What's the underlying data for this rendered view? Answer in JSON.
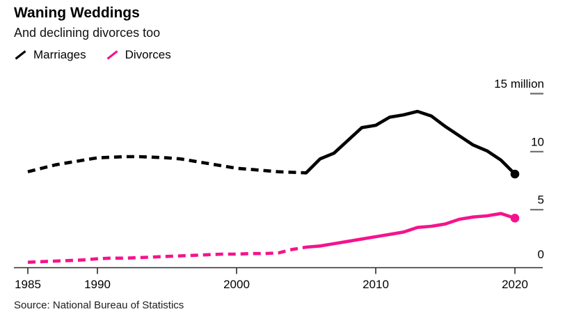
{
  "chart_data": {
    "type": "line",
    "title": "Waning Weddings",
    "subtitle": "And declining divorces too",
    "source": "Source: National Bureau of Statistics",
    "unit": "million",
    "x": [
      1985,
      1986,
      1987,
      1988,
      1989,
      1990,
      1991,
      1992,
      1993,
      1994,
      1995,
      1996,
      1997,
      1998,
      1999,
      2000,
      2001,
      2002,
      2003,
      2004,
      2005,
      2006,
      2007,
      2008,
      2009,
      2010,
      2011,
      2012,
      2013,
      2014,
      2015,
      2016,
      2017,
      2018,
      2019,
      2020
    ],
    "series": [
      {
        "name": "Marriages",
        "color": "#000000",
        "dashed_until_year": 2005,
        "end_dot": true,
        "values": [
          8.3,
          8.6,
          8.9,
          9.1,
          9.3,
          9.5,
          9.55,
          9.6,
          9.6,
          9.55,
          9.5,
          9.4,
          9.2,
          9.0,
          8.8,
          8.6,
          8.5,
          8.4,
          8.3,
          8.25,
          8.2,
          9.4,
          9.9,
          11.0,
          12.1,
          12.3,
          13.0,
          13.2,
          13.5,
          13.1,
          12.2,
          11.4,
          10.6,
          10.1,
          9.3,
          8.1
        ]
      },
      {
        "name": "Divorces",
        "color": "#f5138d",
        "dashed_until_year": 2005,
        "end_dot": true,
        "values": [
          0.5,
          0.55,
          0.6,
          0.65,
          0.7,
          0.8,
          0.85,
          0.85,
          0.9,
          0.95,
          1.0,
          1.05,
          1.1,
          1.15,
          1.2,
          1.2,
          1.25,
          1.25,
          1.3,
          1.6,
          1.8,
          1.9,
          2.1,
          2.3,
          2.5,
          2.7,
          2.9,
          3.1,
          3.5,
          3.6,
          3.8,
          4.2,
          4.4,
          4.5,
          4.7,
          4.3
        ]
      }
    ],
    "xlim": [
      1984,
      2022
    ],
    "ylim": [
      0,
      15
    ],
    "xticks": [
      1985,
      1990,
      2000,
      2010,
      2020
    ],
    "yticks": [
      0,
      5,
      10,
      15
    ],
    "ytick_labels": [
      "0",
      "5",
      "10",
      "15 million"
    ],
    "grid": false,
    "legend_position": "top-left",
    "axis_color": "#2a2a2a",
    "ytick_dash_color": "#6b6b6b"
  }
}
